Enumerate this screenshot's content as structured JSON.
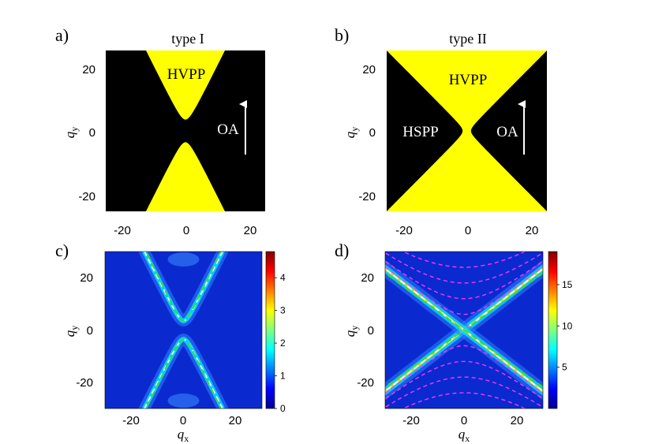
{
  "chart_data": [
    {
      "panel": "a)",
      "type": "heatmap",
      "title": "type I",
      "xlim": [
        -25,
        25
      ],
      "ylim": [
        -25,
        25
      ],
      "xticks": [
        -20,
        0,
        20
      ],
      "yticks": [
        20,
        0,
        -20
      ],
      "ylabel": "q",
      "ylabel_sub": "y",
      "colors": {
        "inside": "#ffff00",
        "outside": "#000000"
      },
      "region": {
        "kind": "hyperbola-vertical",
        "a": 3.5,
        "slope": 2.0
      },
      "annotations": [
        {
          "text": "HVPP",
          "x": 0,
          "y": 15,
          "color": "#000000"
        },
        {
          "text": "OA",
          "x": 11,
          "y": 1,
          "color": "#ffffff"
        }
      ],
      "arrow": {
        "label": "OA",
        "x": 18,
        "y_from": -4,
        "y_to": 9
      }
    },
    {
      "panel": "b)",
      "type": "heatmap",
      "title": "type II",
      "xlim": [
        -25,
        25
      ],
      "ylim": [
        -25,
        25
      ],
      "xticks": [
        -20,
        0,
        20
      ],
      "yticks": [
        20,
        0,
        -20
      ],
      "ylabel": "q",
      "ylabel_sub": "y",
      "colors": {
        "inside": "#ffff00",
        "outside": "#000000"
      },
      "region": {
        "kind": "cross",
        "a": 1.3,
        "slope": 1.0
      },
      "annotations": [
        {
          "text": "HVPP",
          "x": 0,
          "y": 15,
          "color": "#000000"
        },
        {
          "text": "HSPP",
          "x": -15,
          "y": 0,
          "color": "#ffffff"
        },
        {
          "text": "OA",
          "x": 12,
          "y": 0,
          "color": "#ffffff"
        }
      ],
      "arrow": {
        "label": "OA",
        "x": 18,
        "y_from": -4,
        "y_to": 9
      }
    },
    {
      "panel": "c)",
      "type": "heatmap",
      "xlim": [
        -30,
        30
      ],
      "ylim": [
        -30,
        30
      ],
      "xticks": [
        -20,
        0,
        20
      ],
      "yticks": [
        20,
        0,
        -20
      ],
      "xlabel": "q",
      "xlabel_sub": "x",
      "ylabel": "q",
      "ylabel_sub": "y",
      "colorbar": {
        "min": 0,
        "max": 4.8,
        "ticks": [
          4,
          3,
          2,
          1,
          0
        ]
      },
      "branch": {
        "a": 3.5,
        "slope": 2.0
      },
      "overlays": [
        {
          "name": "white dashed",
          "color": "#ffffff"
        },
        {
          "name": "green dashed",
          "color": "#33dd33"
        }
      ]
    },
    {
      "panel": "d)",
      "type": "heatmap",
      "xlim": [
        -30,
        30
      ],
      "ylim": [
        -30,
        30
      ],
      "xticks": [
        -20,
        0,
        20
      ],
      "yticks": [
        20,
        0,
        -20
      ],
      "xlabel": "q",
      "xlabel_sub": "x",
      "ylabel": "q",
      "ylabel_sub": "y",
      "colorbar": {
        "min": 0,
        "max": 19,
        "ticks": [
          15,
          10,
          5
        ]
      },
      "branch": {
        "slope": 0.78
      },
      "overlays": [
        {
          "name": "white dashed",
          "color": "#ffffff"
        },
        {
          "name": "green dashed",
          "color": "#33dd33"
        },
        {
          "name": "magenta dashed",
          "color": "#ff33ff",
          "offsets": [
            6,
            12,
            18,
            24
          ]
        }
      ]
    }
  ]
}
